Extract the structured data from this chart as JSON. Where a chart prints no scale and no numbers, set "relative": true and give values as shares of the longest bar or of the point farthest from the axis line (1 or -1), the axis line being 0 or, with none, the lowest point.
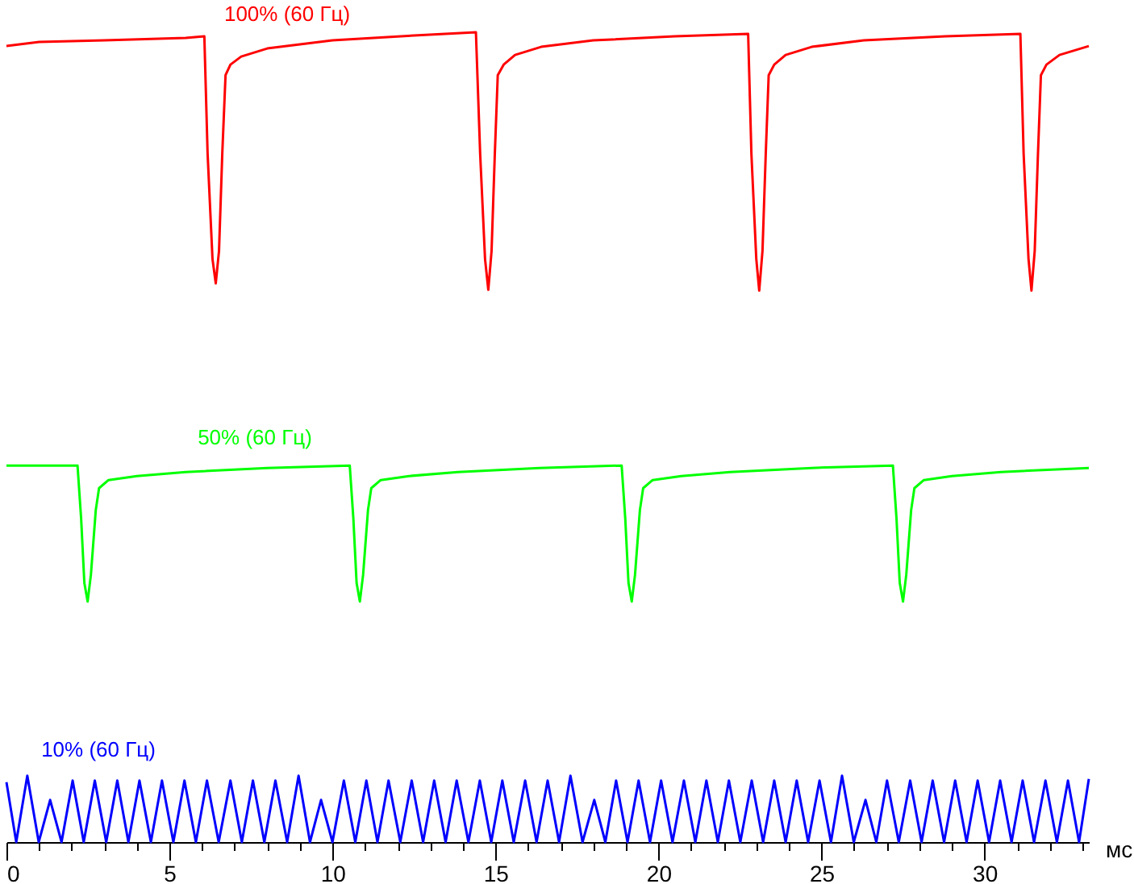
{
  "chart_data": {
    "type": "line",
    "relative": true,
    "xlabel": "мс",
    "xlim": [
      0,
      33.2
    ],
    "xticks": [
      0,
      {
        "value": 1,
        "label": null
      },
      {
        "value": 2,
        "label": null
      },
      {
        "value": 3,
        "label": null
      },
      {
        "value": 4,
        "label": null
      },
      5,
      {
        "value": 6,
        "label": null
      },
      {
        "value": 7,
        "label": null
      },
      {
        "value": 8,
        "label": null
      },
      {
        "value": 9,
        "label": null
      },
      10,
      {
        "value": 11,
        "label": null
      },
      {
        "value": 12,
        "label": null
      },
      {
        "value": 13,
        "label": null
      },
      {
        "value": 14,
        "label": null
      },
      15,
      {
        "value": 16,
        "label": null
      },
      {
        "value": 17,
        "label": null
      },
      {
        "value": 18,
        "label": null
      },
      {
        "value": 19,
        "label": null
      },
      20,
      {
        "value": 21,
        "label": null
      },
      {
        "value": 22,
        "label": null
      },
      {
        "value": 23,
        "label": null
      },
      {
        "value": 24,
        "label": null
      },
      25,
      {
        "value": 26,
        "label": null
      },
      {
        "value": 27,
        "label": null
      },
      {
        "value": 28,
        "label": null
      },
      {
        "value": 29,
        "label": null
      },
      30,
      {
        "value": 31,
        "label": null
      },
      {
        "value": 32,
        "label": null
      },
      {
        "value": 33,
        "label": null
      }
    ],
    "grid": false,
    "legend": false,
    "marker": "none",
    "line_style": "solid",
    "series": [
      {
        "name": "100% (60 Гц)",
        "color": "#ff0000",
        "x": [
          0,
          1.0,
          3.0,
          5.5,
          6.07,
          6.17,
          6.32,
          6.42,
          6.52,
          6.62,
          6.72,
          6.87,
          7.2,
          8.0,
          10.0,
          12.5,
          14.4,
          14.53,
          14.68,
          14.78,
          14.88,
          14.98,
          15.07,
          15.25,
          15.6,
          16.4,
          18.0,
          20.5,
          22.75,
          22.85,
          23.0,
          23.09,
          23.19,
          23.29,
          23.38,
          23.55,
          23.9,
          24.7,
          26.3,
          28.8,
          31.1,
          31.2,
          31.35,
          31.44,
          31.54,
          31.64,
          31.73,
          31.9,
          32.3,
          33.2
        ],
        "values": [
          0.983,
          0.988,
          0.99,
          0.993,
          0.995,
          0.85,
          0.72,
          0.69,
          0.73,
          0.85,
          0.947,
          0.96,
          0.97,
          0.98,
          0.99,
          0.996,
          1.0,
          0.85,
          0.72,
          0.682,
          0.73,
          0.85,
          0.947,
          0.96,
          0.972,
          0.982,
          0.99,
          0.995,
          0.998,
          0.85,
          0.72,
          0.681,
          0.73,
          0.85,
          0.947,
          0.96,
          0.972,
          0.982,
          0.99,
          0.995,
          0.998,
          0.85,
          0.72,
          0.681,
          0.73,
          0.85,
          0.947,
          0.96,
          0.972,
          0.983
        ]
      },
      {
        "name": "50% (60 Гц)",
        "color": "#00ff00",
        "x": [
          0,
          2.18,
          2.29,
          2.39,
          2.49,
          2.59,
          2.74,
          2.84,
          3.13,
          4.0,
          5.5,
          8.0,
          10.53,
          10.64,
          10.74,
          10.84,
          10.94,
          11.09,
          11.19,
          11.48,
          12.35,
          13.85,
          16.35,
          18.87,
          18.98,
          19.08,
          19.18,
          19.28,
          19.43,
          19.53,
          19.82,
          20.7,
          22.2,
          24.7,
          27.19,
          27.3,
          27.4,
          27.5,
          27.6,
          27.75,
          27.85,
          28.14,
          29.0,
          30.5,
          33.2
        ],
        "values": [
          0.465,
          0.465,
          0.4,
          0.32,
          0.297,
          0.33,
          0.41,
          0.437,
          0.447,
          0.452,
          0.457,
          0.462,
          0.465,
          0.4,
          0.32,
          0.297,
          0.33,
          0.41,
          0.437,
          0.447,
          0.452,
          0.457,
          0.462,
          0.465,
          0.4,
          0.32,
          0.297,
          0.33,
          0.41,
          0.437,
          0.447,
          0.452,
          0.457,
          0.462,
          0.465,
          0.4,
          0.32,
          0.297,
          0.33,
          0.41,
          0.437,
          0.447,
          0.452,
          0.457,
          0.462
        ]
      },
      {
        "name": "10% (60 Гц)",
        "color": "#0000ff",
        "x": [
          0,
          0.3,
          0.64,
          0.99,
          1.34,
          1.69,
          2.03,
          2.37,
          2.71,
          3.06,
          3.4,
          3.74,
          4.08,
          4.43,
          4.77,
          5.12,
          5.46,
          5.81,
          6.15,
          6.51,
          6.87,
          7.22,
          7.56,
          7.91,
          8.25,
          8.61,
          8.96,
          9.31,
          9.65,
          10.0,
          10.35,
          10.7,
          11.04,
          11.38,
          11.72,
          12.08,
          12.43,
          12.78,
          13.12,
          13.47,
          13.81,
          14.17,
          14.52,
          14.87,
          15.21,
          15.56,
          15.91,
          16.26,
          16.6,
          16.95,
          17.3,
          17.67,
          18.03,
          18.37,
          18.7,
          19.05,
          19.39,
          19.74,
          20.08,
          20.43,
          20.78,
          21.13,
          21.47,
          21.82,
          22.16,
          22.51,
          22.86,
          23.21,
          23.55,
          23.9,
          24.24,
          24.59,
          24.94,
          25.29,
          25.63,
          25.99,
          26.35,
          26.68,
          27.01,
          27.37,
          27.72,
          28.07,
          28.41,
          28.76,
          29.1,
          29.45,
          29.79,
          30.14,
          30.48,
          30.83,
          31.17,
          31.52,
          31.87,
          32.22,
          32.56,
          32.9,
          33.2
        ],
        "values": [
          0.074,
          0,
          0.082,
          0,
          0.052,
          0,
          0.076,
          0,
          0.076,
          0,
          0.076,
          0,
          0.076,
          0,
          0.076,
          0,
          0.076,
          0,
          0.076,
          0,
          0.076,
          0,
          0.076,
          0,
          0.076,
          0,
          0.082,
          0,
          0.052,
          0,
          0.076,
          0,
          0.076,
          0,
          0.076,
          0,
          0.076,
          0,
          0.076,
          0,
          0.076,
          0,
          0.076,
          0,
          0.076,
          0,
          0.076,
          0,
          0.076,
          0,
          0.082,
          0,
          0.052,
          0,
          0.076,
          0,
          0.076,
          0,
          0.076,
          0,
          0.076,
          0,
          0.076,
          0,
          0.076,
          0,
          0.076,
          0,
          0.076,
          0,
          0.076,
          0,
          0.076,
          0,
          0.082,
          0,
          0.052,
          0,
          0.076,
          0,
          0.076,
          0,
          0.076,
          0,
          0.076,
          0,
          0.076,
          0,
          0.076,
          0,
          0.076,
          0,
          0.076,
          0,
          0.076,
          0,
          0.078
        ]
      }
    ]
  }
}
